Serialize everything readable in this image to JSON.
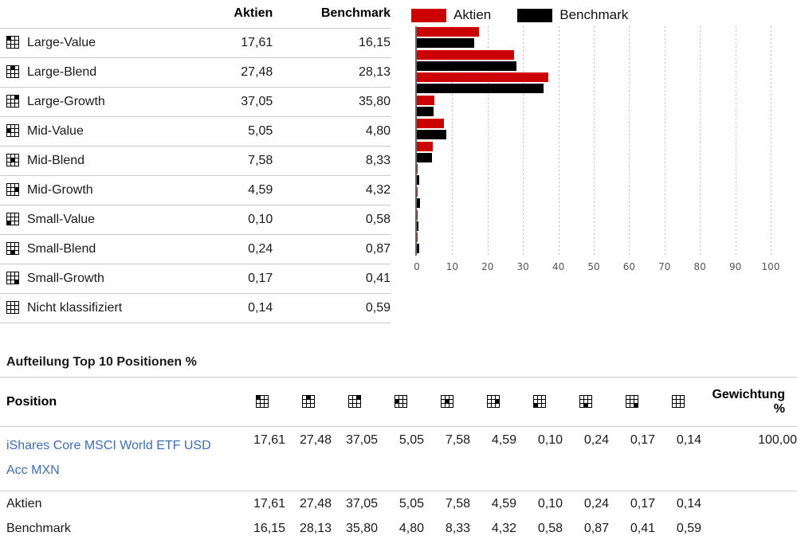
{
  "style_table": {
    "columns": [
      "Aktien",
      "Benchmark"
    ],
    "rows": [
      {
        "label": "Large-Value",
        "slug": "large-value",
        "icon_cell": 0,
        "aktien": "17,61",
        "benchmark": "16,15"
      },
      {
        "label": "Large-Blend",
        "slug": "large-blend",
        "icon_cell": 1,
        "aktien": "27,48",
        "benchmark": "28,13"
      },
      {
        "label": "Large-Growth",
        "slug": "large-growth",
        "icon_cell": 2,
        "aktien": "37,05",
        "benchmark": "35,80"
      },
      {
        "label": "Mid-Value",
        "slug": "mid-value",
        "icon_cell": 3,
        "aktien": "5,05",
        "benchmark": "4,80"
      },
      {
        "label": "Mid-Blend",
        "slug": "mid-blend",
        "icon_cell": 4,
        "aktien": "7,58",
        "benchmark": "8,33"
      },
      {
        "label": "Mid-Growth",
        "slug": "mid-growth",
        "icon_cell": 5,
        "aktien": "4,59",
        "benchmark": "4,32"
      },
      {
        "label": "Small-Value",
        "slug": "small-value",
        "icon_cell": 6,
        "aktien": "0,10",
        "benchmark": "0,58"
      },
      {
        "label": "Small-Blend",
        "slug": "small-blend",
        "icon_cell": 7,
        "aktien": "0,24",
        "benchmark": "0,87"
      },
      {
        "label": "Small-Growth",
        "slug": "small-growth",
        "icon_cell": 8,
        "aktien": "0,17",
        "benchmark": "0,41"
      },
      {
        "label": "Nicht klassifiziert",
        "slug": "nicht-klassifiziert",
        "icon_cell": -1,
        "aktien": "0,14",
        "benchmark": "0,59"
      }
    ]
  },
  "chart_data": {
    "type": "bar",
    "orientation": "horizontal",
    "title": "",
    "categories": [
      "Large-Value",
      "Large-Blend",
      "Large-Growth",
      "Mid-Value",
      "Mid-Blend",
      "Mid-Growth",
      "Small-Value",
      "Small-Blend",
      "Small-Growth",
      "Nicht klassifiziert"
    ],
    "series": [
      {
        "name": "Aktien",
        "color": "#cc0000",
        "values": [
          17.61,
          27.48,
          37.05,
          5.05,
          7.58,
          4.59,
          0.1,
          0.24,
          0.17,
          0.14
        ]
      },
      {
        "name": "Benchmark",
        "color": "#000000",
        "values": [
          16.15,
          28.13,
          35.8,
          4.8,
          8.33,
          4.32,
          0.58,
          0.87,
          0.41,
          0.59
        ]
      }
    ],
    "xlim": [
      0,
      100
    ],
    "x_ticks": [
      0,
      10,
      20,
      30,
      40,
      50,
      60,
      70,
      80,
      90,
      100
    ],
    "legend_position": "top",
    "grid": "vertical-dotted"
  },
  "positions": {
    "title": "Aufteilung Top 10 Positionen %",
    "header": {
      "position": "Position",
      "gewichtung": [
        "Gewichtung",
        "%"
      ]
    },
    "rows": [
      {
        "label": "iShares Core MSCI World ETF USD Acc MXN",
        "is_link": true,
        "values": [
          "17,61",
          "27,48",
          "37,05",
          "5,05",
          "7,58",
          "4,59",
          "0,10",
          "0,24",
          "0,17",
          "0,14"
        ],
        "gewichtung": "100,00"
      },
      {
        "label": "Aktien",
        "is_link": false,
        "values": [
          "17,61",
          "27,48",
          "37,05",
          "5,05",
          "7,58",
          "4,59",
          "0,10",
          "0,24",
          "0,17",
          "0,14"
        ],
        "gewichtung": ""
      },
      {
        "label": "Benchmark",
        "is_link": false,
        "values": [
          "16,15",
          "28,13",
          "35,80",
          "4,80",
          "8,33",
          "4,32",
          "0,58",
          "0,87",
          "0,41",
          "0,59"
        ],
        "gewichtung": ""
      }
    ]
  },
  "colors": {
    "aktien_red": "#cc0000",
    "benchmark_black": "#000000",
    "link_blue": "#3d6eb4"
  }
}
